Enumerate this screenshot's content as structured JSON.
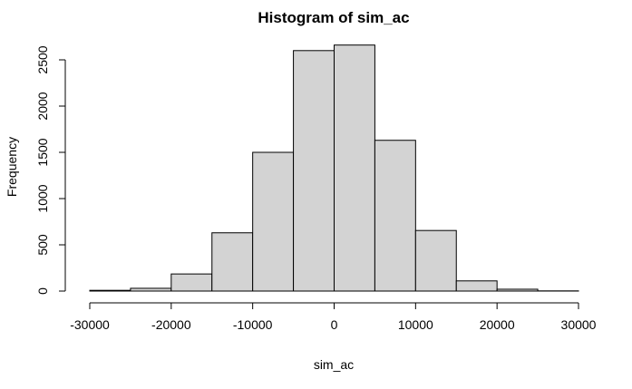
{
  "chart_data": {
    "type": "bar",
    "title": "Histogram of sim_ac",
    "xlabel": "sim_ac",
    "ylabel": "Frequency",
    "bin_edges": [
      -30000,
      -25000,
      -20000,
      -15000,
      -10000,
      -5000,
      0,
      5000,
      10000,
      15000,
      20000,
      25000,
      30000
    ],
    "values": [
      8,
      30,
      185,
      630,
      1500,
      2600,
      2660,
      1630,
      655,
      110,
      20,
      2
    ],
    "x_ticks": [
      -30000,
      -20000,
      -10000,
      0,
      10000,
      20000,
      30000
    ],
    "x_tick_labels": [
      "-30000",
      "-20000",
      "-10000",
      "0",
      "10000",
      "20000",
      "30000"
    ],
    "y_ticks": [
      0,
      500,
      1000,
      1500,
      2000,
      2500
    ],
    "y_tick_labels": [
      "0",
      "500",
      "1000",
      "1500",
      "2000",
      "2500"
    ],
    "xlim": [
      -30000,
      30000
    ],
    "ylim": [
      0,
      2500
    ],
    "grid": false,
    "bar_fill": "#d3d3d3",
    "bar_stroke": "#000000"
  }
}
